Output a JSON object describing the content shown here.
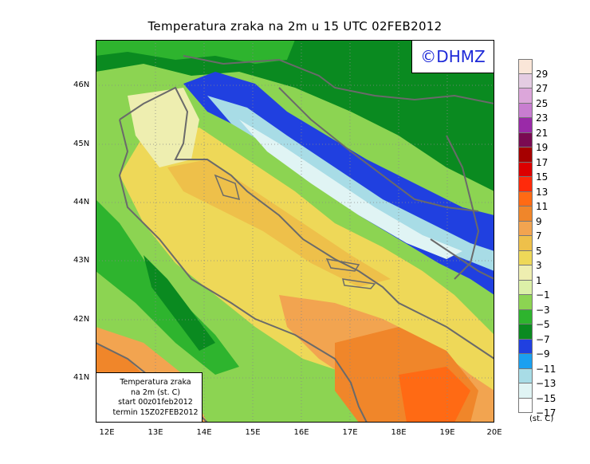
{
  "title": "Temperatura zraka na 2m u 15 UTC 02FEB2012",
  "logo_text": "©DHMZ",
  "info_box": {
    "line1": "Temperatura zraka",
    "line2": "na 2m (st. C)",
    "line3": "start 00z01feb2012",
    "line4": "termin 15Z02FEB2012"
  },
  "lat_labels": [
    "46N",
    "45N",
    "44N",
    "43N",
    "42N",
    "41N"
  ],
  "lon_labels": [
    "12E",
    "13E",
    "14E",
    "15E",
    "16E",
    "17E",
    "18E",
    "19E",
    "20E"
  ],
  "legend": {
    "labels": [
      "29",
      "27",
      "25",
      "23",
      "21",
      "19",
      "17",
      "15",
      "13",
      "11",
      "9",
      "7",
      "5",
      "3",
      "1",
      "−1",
      "−3",
      "−5",
      "−7",
      "−9",
      "−11",
      "−13",
      "−15",
      "−17"
    ],
    "colors": [
      "#fae6d8",
      "#e4cce2",
      "#dca6da",
      "#c87ed0",
      "#9a2aa8",
      "#7a0a52",
      "#a60000",
      "#dc0000",
      "#ff2a0a",
      "#ff6a14",
      "#f0862a",
      "#f2a450",
      "#eec04a",
      "#eed858",
      "#eeeeb0",
      "#dcf0a8",
      "#8cd452",
      "#2eb42e",
      "#0a8a20",
      "#2040e0",
      "#1aa0f0",
      "#a8dce6",
      "#e0f4f4",
      "#ffffff"
    ],
    "units": "(st. C)"
  },
  "palette": {
    "coast": "#6a6a6a",
    "border": "#6a6a6a",
    "grid": "#888888",
    "sea_warm": "#eec04a",
    "sea_hot": "#f2a450",
    "land_green": "#2eb42e",
    "mountain_blue": "#2040e0"
  }
}
